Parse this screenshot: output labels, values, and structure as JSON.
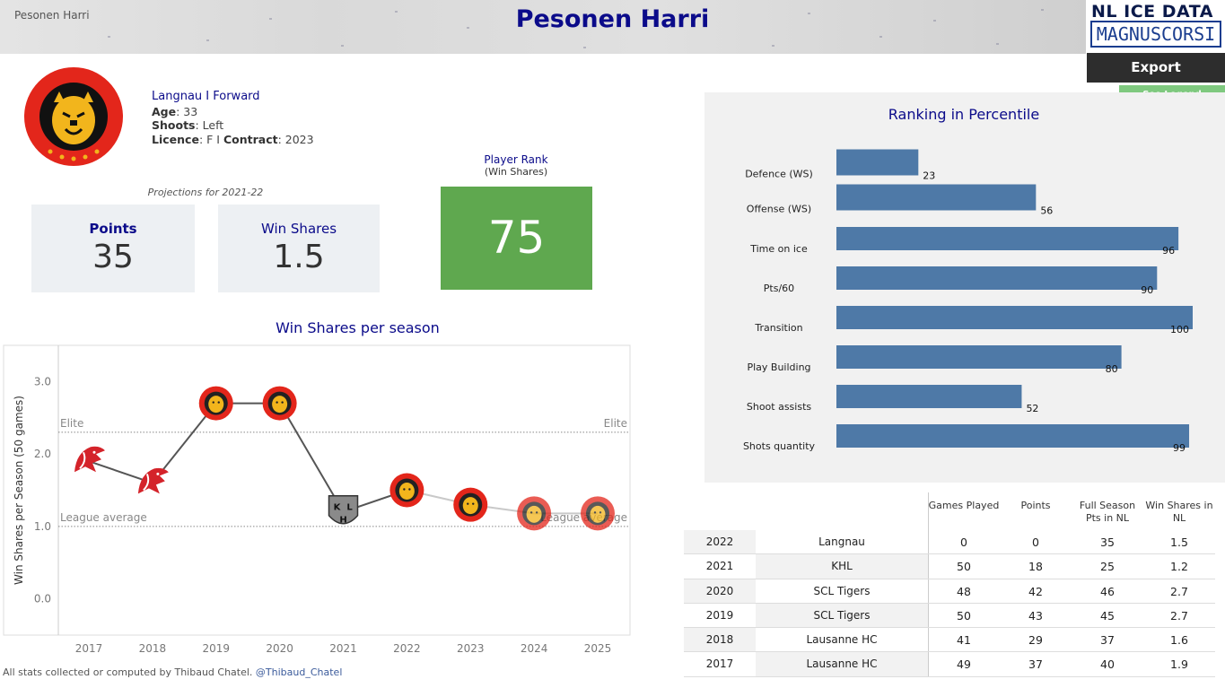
{
  "header": {
    "breadcrumb": "Pesonen Harri",
    "title": "Pesonen Harri",
    "brand_line1": "NL ICE DATA",
    "brand_line2": "MAGNUSCORSI",
    "export_label": "Export",
    "legend_label": "See Legend"
  },
  "player": {
    "team_line": "Langnau  I  Forward",
    "age_label": "Age",
    "age_value": ": 33",
    "shoots_label": "Shoots",
    "shoots_value": ": Left",
    "licence_label": "Licence",
    "licence_value": ": F I ",
    "contract_label": "Contract",
    "contract_value": ": 2023"
  },
  "projections": {
    "label": "Projections for 2021-22",
    "points_label": "Points",
    "points_value": "35",
    "ws_label": "Win Shares",
    "ws_value": "1.5"
  },
  "rank": {
    "title": "Player Rank",
    "subtitle": "(Win Shares)",
    "value": "75"
  },
  "colors": {
    "accent": "#0b0b8a",
    "rank_green": "#5fa84f",
    "bar_blue": "#4e79a7",
    "legend_green": "#7fc97f"
  },
  "chart_data": [
    {
      "type": "line",
      "title": "Win Shares per season",
      "ylabel": "Win Shares per Season (50 games)",
      "x": [
        "2017",
        "2018",
        "2019",
        "2020",
        "2021",
        "2022",
        "2023",
        "2024",
        "2025"
      ],
      "y": [
        1.9,
        1.6,
        2.7,
        2.7,
        1.2,
        1.5,
        1.3,
        1.18,
        1.18
      ],
      "team_icons": [
        "lausanne",
        "lausanne",
        "tigers",
        "tigers",
        "khl",
        "tigers",
        "tigers",
        "tigers",
        "tigers"
      ],
      "y_ticks": [
        "0.0",
        "1.0",
        "2.0",
        "3.0"
      ],
      "ylim": [
        -0.5,
        3.5
      ],
      "ref_lines": [
        {
          "label": "Elite",
          "value": 2.3
        },
        {
          "label": "League average",
          "value": 1.0
        }
      ]
    },
    {
      "type": "bar",
      "title": "Ranking in Percentile",
      "groups": [
        {
          "categories": [
            "Defence (WS)",
            "Offense (WS)"
          ],
          "values": [
            23,
            56
          ]
        },
        {
          "categories": [
            "Time on ice",
            "Pts/60",
            "Transition",
            "Play Building",
            "Shoot assists",
            "Shots quantity"
          ],
          "values": [
            96,
            90,
            100,
            80,
            52,
            99
          ]
        }
      ],
      "xlim": [
        0,
        100
      ]
    }
  ],
  "table": {
    "headers": [
      "Games Played",
      "Points",
      "Full Season Pts in NL",
      "Win Shares in NL"
    ],
    "rows": [
      [
        "2022",
        "Langnau",
        "0",
        "0",
        "35",
        "1.5"
      ],
      [
        "2021",
        "KHL",
        "50",
        "18",
        "25",
        "1.2"
      ],
      [
        "2020",
        "SCL Tigers",
        "48",
        "42",
        "46",
        "2.7"
      ],
      [
        "2019",
        "SCL Tigers",
        "50",
        "43",
        "45",
        "2.7"
      ],
      [
        "2018",
        "Lausanne HC",
        "41",
        "29",
        "37",
        "1.6"
      ],
      [
        "2017",
        "Lausanne HC",
        "49",
        "37",
        "40",
        "1.9"
      ]
    ]
  },
  "footer": {
    "text": "All stats collected or computed by Thibaud Chatel.",
    "handle": "@Thibaud_Chatel"
  }
}
